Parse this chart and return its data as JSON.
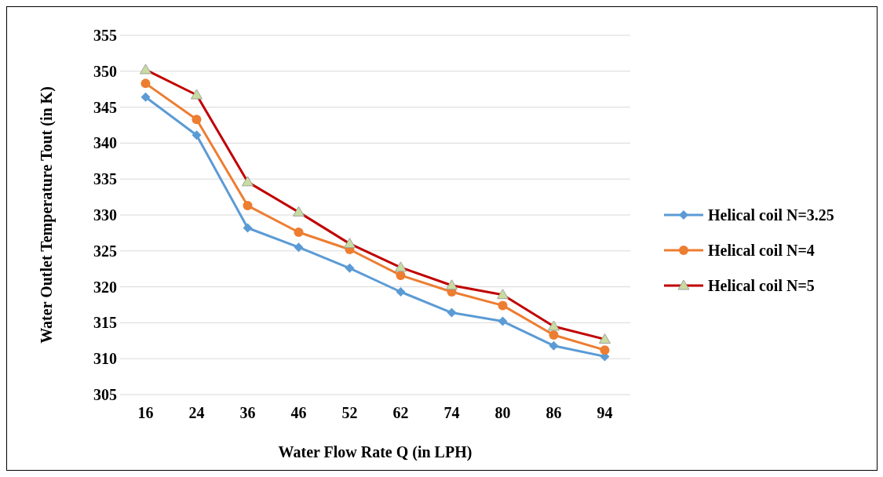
{
  "chart_data": {
    "type": "line",
    "xlabel": "Water Flow Rate  Q (in LPH)",
    "ylabel": "Water Outlet Temperature  Tout (in K)",
    "categories": [
      "16",
      "24",
      "36",
      "46",
      "52",
      "62",
      "74",
      "80",
      "86",
      "94"
    ],
    "ylim": [
      305,
      355
    ],
    "yticks": [
      305,
      310,
      315,
      320,
      325,
      330,
      335,
      340,
      345,
      350,
      355
    ],
    "grid": "y",
    "legend": "right",
    "series": [
      {
        "name": "Helical coil N=3.25",
        "color": "#5b9bd5",
        "marker": "diamond",
        "values": [
          346.4,
          341.1,
          328.2,
          325.5,
          322.6,
          319.3,
          316.4,
          315.2,
          311.8,
          310.3
        ]
      },
      {
        "name": "Helical coil N=4",
        "color": "#ed7d31",
        "marker": "circle",
        "values": [
          348.3,
          343.3,
          331.3,
          327.6,
          325.2,
          321.6,
          319.3,
          317.4,
          313.3,
          311.2
        ]
      },
      {
        "name": "Helical coil N=5",
        "color": "#c00000",
        "marker": "triangle",
        "values": [
          350.2,
          346.7,
          334.6,
          330.4,
          326.0,
          322.7,
          320.2,
          318.9,
          314.5,
          312.7
        ]
      }
    ]
  }
}
